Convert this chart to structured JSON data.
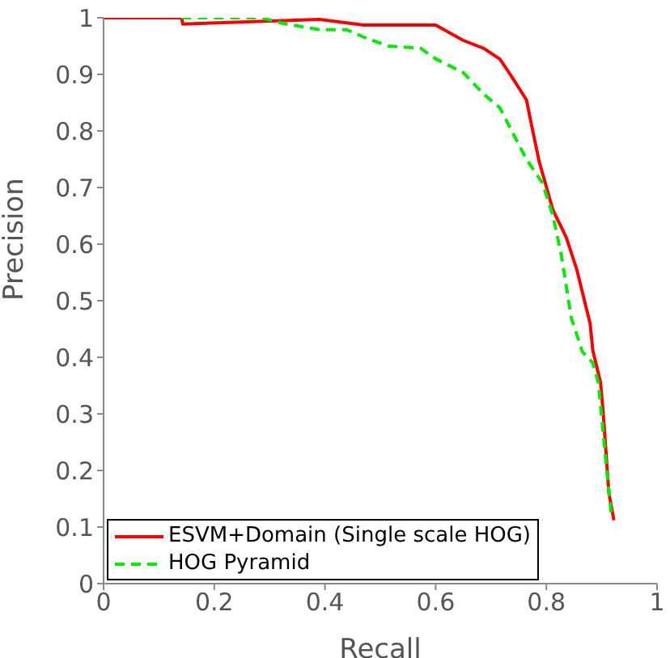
{
  "chart_data": {
    "type": "line",
    "xlabel": "Recall",
    "ylabel": "Precision",
    "xlim": [
      0,
      1
    ],
    "ylim": [
      0,
      1
    ],
    "xticks": [
      0,
      0.2,
      0.4,
      0.6,
      0.8,
      1
    ],
    "yticks": [
      0,
      0.1,
      0.2,
      0.3,
      0.4,
      0.5,
      0.6,
      0.7,
      0.8,
      0.9,
      1
    ],
    "grid": false,
    "legend": "bottom left",
    "marker": "none",
    "series": [
      {
        "name": "ESVM+Domain (Single scale HOG)",
        "color": "#ff0000",
        "line_style": "solid",
        "x": [
          0,
          0.141,
          0.143,
          0.39,
          0.47,
          0.6,
          0.65,
          0.687,
          0.716,
          0.736,
          0.764,
          0.773,
          0.787,
          0.812,
          0.836,
          0.855,
          0.879,
          0.884,
          0.898,
          0.903,
          0.913,
          0.922
        ],
        "values": [
          1,
          1,
          0.989,
          0.997,
          0.987,
          0.987,
          0.96,
          0.946,
          0.927,
          0.898,
          0.855,
          0.812,
          0.746,
          0.66,
          0.612,
          0.555,
          0.46,
          0.412,
          0.355,
          0.298,
          0.16,
          0.112
        ]
      },
      {
        "name": "HOG Pyramid",
        "color": "#00ee00",
        "line_style": "dashed",
        "x": [
          0.141,
          0.285,
          0.324,
          0.39,
          0.439,
          0.477,
          0.515,
          0.573,
          0.601,
          0.65,
          0.687,
          0.716,
          0.736,
          0.764,
          0.793,
          0.812,
          0.827,
          0.845,
          0.865,
          0.884,
          0.894,
          0.908,
          0.917
        ],
        "values": [
          1,
          1,
          0.99,
          0.979,
          0.979,
          0.963,
          0.95,
          0.946,
          0.927,
          0.903,
          0.865,
          0.841,
          0.803,
          0.75,
          0.708,
          0.65,
          0.581,
          0.47,
          0.41,
          0.39,
          0.355,
          0.212,
          0.126
        ]
      }
    ]
  }
}
